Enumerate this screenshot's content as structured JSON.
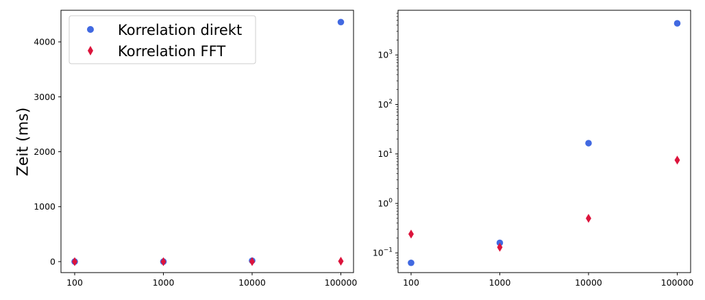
{
  "chart_data": [
    {
      "type": "scatter",
      "title": "",
      "xlabel": "",
      "ylabel": "Zeit (ms)",
      "x_scale": "categorical",
      "y_scale": "linear",
      "categories": [
        "100",
        "1000",
        "10000",
        "100000"
      ],
      "ylim": [
        -200,
        4575
      ],
      "yticks": [
        0,
        1000,
        2000,
        3000,
        4000
      ],
      "ytick_labels": [
        "0",
        "1000",
        "2000",
        "3000",
        "4000"
      ],
      "grid": false,
      "legend": "top-left",
      "series": [
        {
          "name": "Korrelation direkt",
          "marker": "circle",
          "color": "#4169E1",
          "values": [
            0.063,
            0.16,
            16.5,
            4360
          ]
        },
        {
          "name": "Korrelation FFT",
          "marker": "diamond",
          "color": "#DC143C",
          "values": [
            0.24,
            0.13,
            0.5,
            7.5
          ]
        }
      ]
    },
    {
      "type": "scatter",
      "title": "",
      "xlabel": "",
      "ylabel": "",
      "x_scale": "categorical",
      "y_scale": "log",
      "categories": [
        "100",
        "1000",
        "10000",
        "100000"
      ],
      "ylim": [
        0.04,
        8000
      ],
      "yticks": [
        0.1,
        1,
        10,
        100,
        1000
      ],
      "ytick_labels": [
        {
          "base": "10",
          "exp": "−1"
        },
        {
          "base": "10",
          "exp": "0"
        },
        {
          "base": "10",
          "exp": "1"
        },
        {
          "base": "10",
          "exp": "2"
        },
        {
          "base": "10",
          "exp": "3"
        }
      ],
      "grid": false,
      "legend": "none",
      "series": [
        {
          "marker": "circle",
          "color": "#4169E1",
          "values": [
            0.063,
            0.16,
            16.5,
            4360
          ]
        },
        {
          "marker": "diamond",
          "color": "#DC143C",
          "values": [
            0.24,
            0.13,
            0.5,
            7.5
          ]
        }
      ]
    }
  ]
}
